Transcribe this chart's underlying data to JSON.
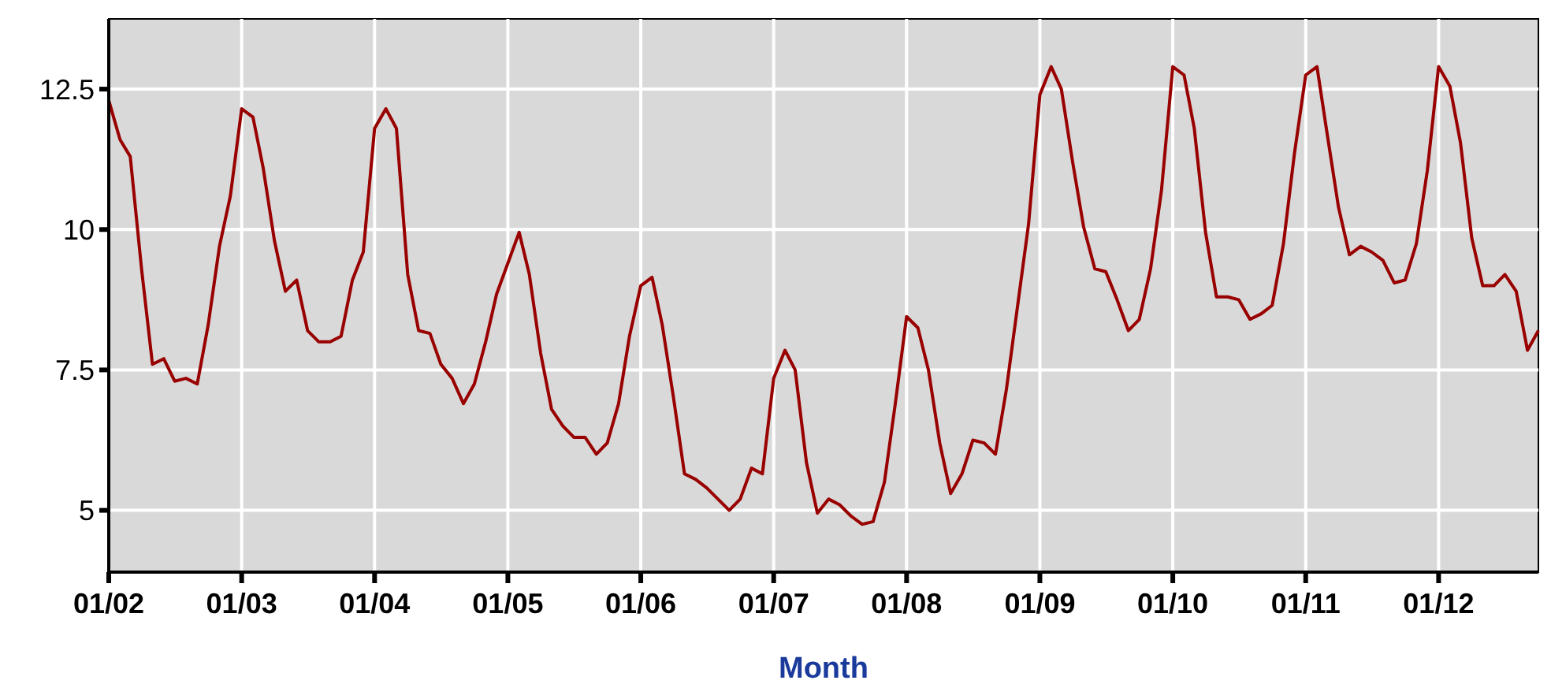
{
  "chart_data": {
    "type": "line",
    "xlabel": "Month",
    "x": [
      "2002-01",
      "2002-02",
      "2002-03",
      "2002-04",
      "2002-05",
      "2002-06",
      "2002-07",
      "2002-08",
      "2002-09",
      "2002-10",
      "2002-11",
      "2002-12",
      "2003-01",
      "2003-02",
      "2003-03",
      "2003-04",
      "2003-05",
      "2003-06",
      "2003-07",
      "2003-08",
      "2003-09",
      "2003-10",
      "2003-11",
      "2003-12",
      "2004-01",
      "2004-02",
      "2004-03",
      "2004-04",
      "2004-05",
      "2004-06",
      "2004-07",
      "2004-08",
      "2004-09",
      "2004-10",
      "2004-11",
      "2004-12",
      "2005-01",
      "2005-02",
      "2005-03",
      "2005-04",
      "2005-05",
      "2005-06",
      "2005-07",
      "2005-08",
      "2005-09",
      "2005-10",
      "2005-11",
      "2005-12",
      "2006-01",
      "2006-02",
      "2006-03",
      "2006-04",
      "2006-05",
      "2006-06",
      "2006-07",
      "2006-08",
      "2006-09",
      "2006-10",
      "2006-11",
      "2006-12",
      "2007-01",
      "2007-02",
      "2007-03",
      "2007-04",
      "2007-05",
      "2007-06",
      "2007-07",
      "2007-08",
      "2007-09",
      "2007-10",
      "2007-11",
      "2007-12",
      "2008-01",
      "2008-02",
      "2008-03",
      "2008-04",
      "2008-05",
      "2008-06",
      "2008-07",
      "2008-08",
      "2008-09",
      "2008-10",
      "2008-11",
      "2008-12",
      "2009-01",
      "2009-02",
      "2009-03",
      "2009-04",
      "2009-05",
      "2009-06",
      "2009-07",
      "2009-08",
      "2009-09",
      "2009-10",
      "2009-11",
      "2009-12",
      "2010-01",
      "2010-02",
      "2010-03",
      "2010-04",
      "2010-05",
      "2010-06",
      "2010-07",
      "2010-08",
      "2010-09",
      "2010-10",
      "2010-11",
      "2010-12",
      "2011-01",
      "2011-02",
      "2011-03",
      "2011-04",
      "2011-05",
      "2011-06",
      "2011-07",
      "2011-08",
      "2011-09",
      "2011-10",
      "2011-11",
      "2011-12",
      "2012-01",
      "2012-02",
      "2012-03",
      "2012-04",
      "2012-05",
      "2012-06",
      "2012-07",
      "2012-08",
      "2012-09",
      "2012-10"
    ],
    "series": [
      {
        "color": "#990000",
        "values": [
          12.3,
          11.6,
          11.3,
          9.3,
          7.6,
          7.7,
          7.3,
          7.35,
          7.25,
          8.3,
          9.7,
          10.6,
          12.15,
          12.0,
          11.1,
          9.8,
          8.9,
          9.1,
          8.2,
          8.0,
          8.0,
          8.1,
          9.1,
          9.6,
          11.8,
          12.15,
          11.8,
          9.2,
          8.2,
          8.15,
          7.6,
          7.35,
          6.9,
          7.25,
          8.0,
          8.85,
          9.4,
          9.95,
          9.2,
          7.8,
          6.8,
          6.5,
          6.3,
          6.3,
          6.0,
          6.2,
          6.9,
          8.1,
          9.0,
          9.15,
          8.3,
          7.0,
          5.65,
          5.55,
          5.4,
          5.2,
          5.0,
          5.2,
          5.75,
          5.65,
          7.35,
          7.85,
          7.5,
          5.85,
          4.95,
          5.2,
          5.1,
          4.9,
          4.75,
          4.8,
          5.5,
          6.9,
          8.45,
          8.25,
          7.5,
          6.2,
          5.3,
          5.65,
          6.25,
          6.2,
          6.0,
          7.15,
          8.65,
          10.1,
          12.4,
          12.9,
          12.5,
          11.2,
          10.05,
          9.3,
          9.25,
          8.75,
          8.2,
          8.4,
          9.3,
          10.7,
          12.9,
          12.75,
          11.8,
          9.95,
          8.8,
          8.8,
          8.75,
          8.4,
          8.5,
          8.65,
          9.75,
          11.35,
          12.75,
          12.9,
          11.7,
          10.4,
          9.55,
          9.7,
          9.6,
          9.45,
          9.05,
          9.1,
          9.75,
          11.05,
          12.9,
          12.55,
          11.55,
          9.85,
          9.0,
          9.0,
          9.2,
          8.9,
          7.85,
          8.2
        ]
      }
    ],
    "xlim": [
      "2002-01",
      "2012-10"
    ],
    "xticks": [
      {
        "value": "2002-01",
        "label": "01/02"
      },
      {
        "value": "2003-01",
        "label": "01/03"
      },
      {
        "value": "2004-01",
        "label": "01/04"
      },
      {
        "value": "2005-01",
        "label": "01/05"
      },
      {
        "value": "2006-01",
        "label": "01/06"
      },
      {
        "value": "2007-01",
        "label": "01/07"
      },
      {
        "value": "2008-01",
        "label": "01/08"
      },
      {
        "value": "2009-01",
        "label": "01/09"
      },
      {
        "value": "2010-01",
        "label": "01/10"
      },
      {
        "value": "2011-01",
        "label": "01/11"
      },
      {
        "value": "2012-01",
        "label": "01/12"
      }
    ],
    "ylim": [
      3.9,
      13.75
    ],
    "yticks": [
      5,
      {
        "value": 7.5,
        "label": "7.5"
      },
      {
        "value": 10,
        "label": "10"
      },
      12.5
    ],
    "grid": true,
    "marker": "none",
    "line_style": "solid"
  }
}
